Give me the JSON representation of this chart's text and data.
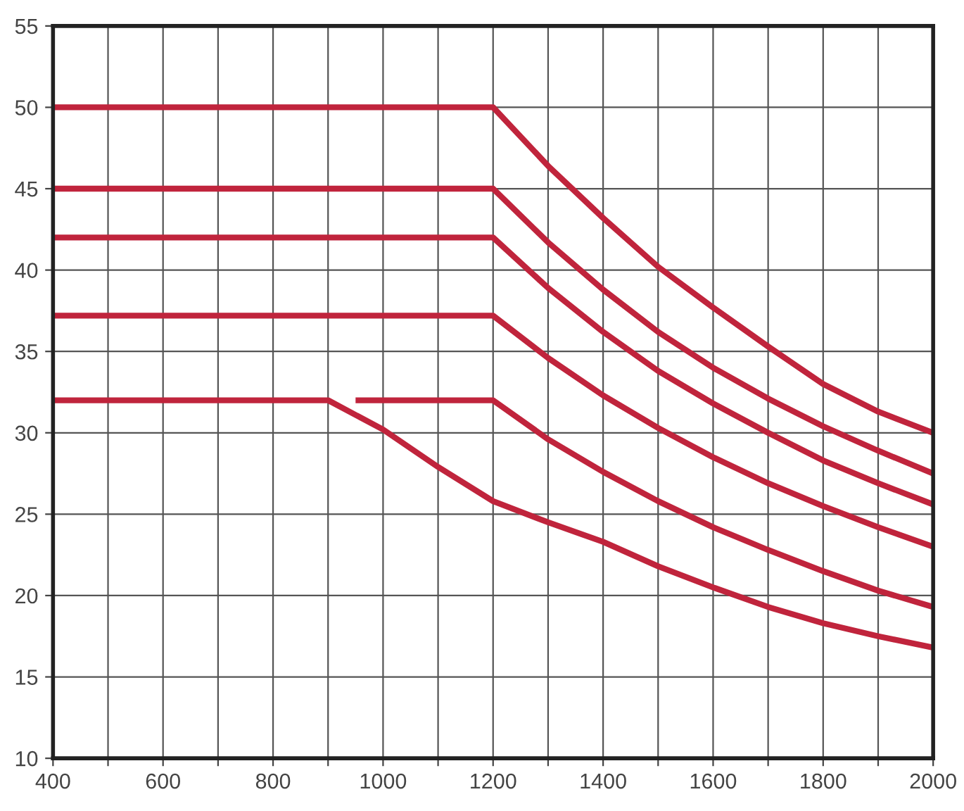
{
  "chart_data": {
    "type": "line",
    "xlim": [
      400,
      2000
    ],
    "xticks": [
      400,
      {
        "value": 500,
        "label": null
      },
      600,
      {
        "value": 700,
        "label": null
      },
      800,
      {
        "value": 900,
        "label": null
      },
      1000,
      {
        "value": 1100,
        "label": null
      },
      1200,
      {
        "value": 1300,
        "label": null
      },
      1400,
      {
        "value": 1500,
        "label": null
      },
      1600,
      {
        "value": 1700,
        "label": null
      },
      1800,
      {
        "value": 1900,
        "label": null
      },
      2000
    ],
    "ylim": [
      10,
      55
    ],
    "yticks": [
      10,
      15,
      20,
      25,
      30,
      35,
      40,
      45,
      50,
      55
    ],
    "grid": true,
    "line_style": "solid",
    "series": [
      {
        "color": "#c0243c",
        "x": [
          400,
          1200,
          1300,
          1400,
          1500,
          1600,
          1700,
          1800,
          1900,
          2000
        ],
        "values": [
          50,
          50,
          46.4,
          43.2,
          40.2,
          37.7,
          35.3,
          33.0,
          31.3,
          30.0
        ]
      },
      {
        "color": "#c0243c",
        "x": [
          400,
          1200,
          1300,
          1400,
          1500,
          1600,
          1700,
          1800,
          1900,
          2000
        ],
        "values": [
          45,
          45,
          41.7,
          38.8,
          36.2,
          34.0,
          32.1,
          30.4,
          28.9,
          27.5
        ]
      },
      {
        "color": "#c0243c",
        "x": [
          400,
          1200,
          1300,
          1400,
          1500,
          1600,
          1700,
          1800,
          1900,
          2000
        ],
        "values": [
          42,
          42,
          38.9,
          36.2,
          33.8,
          31.8,
          30.0,
          28.3,
          26.9,
          25.6
        ]
      },
      {
        "color": "#c0243c",
        "x": [
          400,
          1200,
          1300,
          1400,
          1500,
          1600,
          1700,
          1800,
          1900,
          2000
        ],
        "values": [
          37.2,
          37.2,
          34.6,
          32.3,
          30.3,
          28.5,
          26.9,
          25.5,
          24.2,
          23.0
        ]
      },
      {
        "color": "#c0243c",
        "x": [
          950,
          1200,
          1300,
          1400,
          1500,
          1600,
          1700,
          1800,
          1900,
          2000
        ],
        "values": [
          32,
          32,
          29.6,
          27.6,
          25.8,
          24.2,
          22.8,
          21.5,
          20.3,
          19.3
        ]
      },
      {
        "color": "#c0243c",
        "x": [
          400,
          900,
          1000,
          1100,
          1200,
          1300,
          1400,
          1500,
          1600,
          1700,
          1800,
          1900,
          2000
        ],
        "values": [
          32,
          32,
          30.2,
          27.9,
          25.8,
          24.5,
          23.3,
          21.8,
          20.5,
          19.3,
          18.3,
          17.5,
          16.8
        ]
      }
    ]
  }
}
